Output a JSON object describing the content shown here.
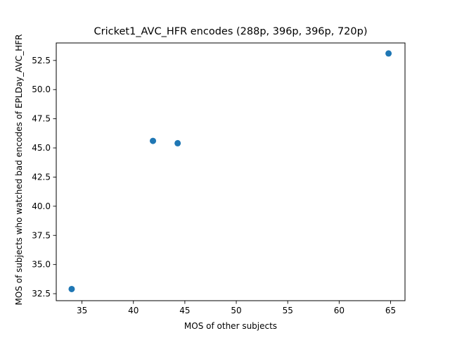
{
  "chart_data": {
    "type": "scatter",
    "title": "Cricket1_AVC_HFR encodes (288p, 396p, 396p, 720p)",
    "xlabel": "MOS of other subjects",
    "ylabel": "MOS of subjects who watched bad encodes of EPLDay_AVC_HFR",
    "xlim": [
      32.5,
      66.4
    ],
    "ylim": [
      31.9,
      54.0
    ],
    "xticks": [
      35,
      40,
      45,
      50,
      55,
      60,
      65
    ],
    "yticks": [
      32.5,
      35.0,
      37.5,
      40.0,
      42.5,
      45.0,
      47.5,
      50.0,
      52.5
    ],
    "xtick_labels": [
      "35",
      "40",
      "45",
      "50",
      "55",
      "60",
      "65"
    ],
    "ytick_labels": [
      "32.5",
      "35.0",
      "37.5",
      "40.0",
      "42.5",
      "45.0",
      "47.5",
      "50.0",
      "52.5"
    ],
    "grid": false,
    "series": [
      {
        "color": "#1f77b4",
        "points": [
          {
            "x": 34.0,
            "y": 32.9
          },
          {
            "x": 41.9,
            "y": 45.6
          },
          {
            "x": 44.3,
            "y": 45.4
          },
          {
            "x": 64.8,
            "y": 53.1
          }
        ]
      }
    ]
  }
}
